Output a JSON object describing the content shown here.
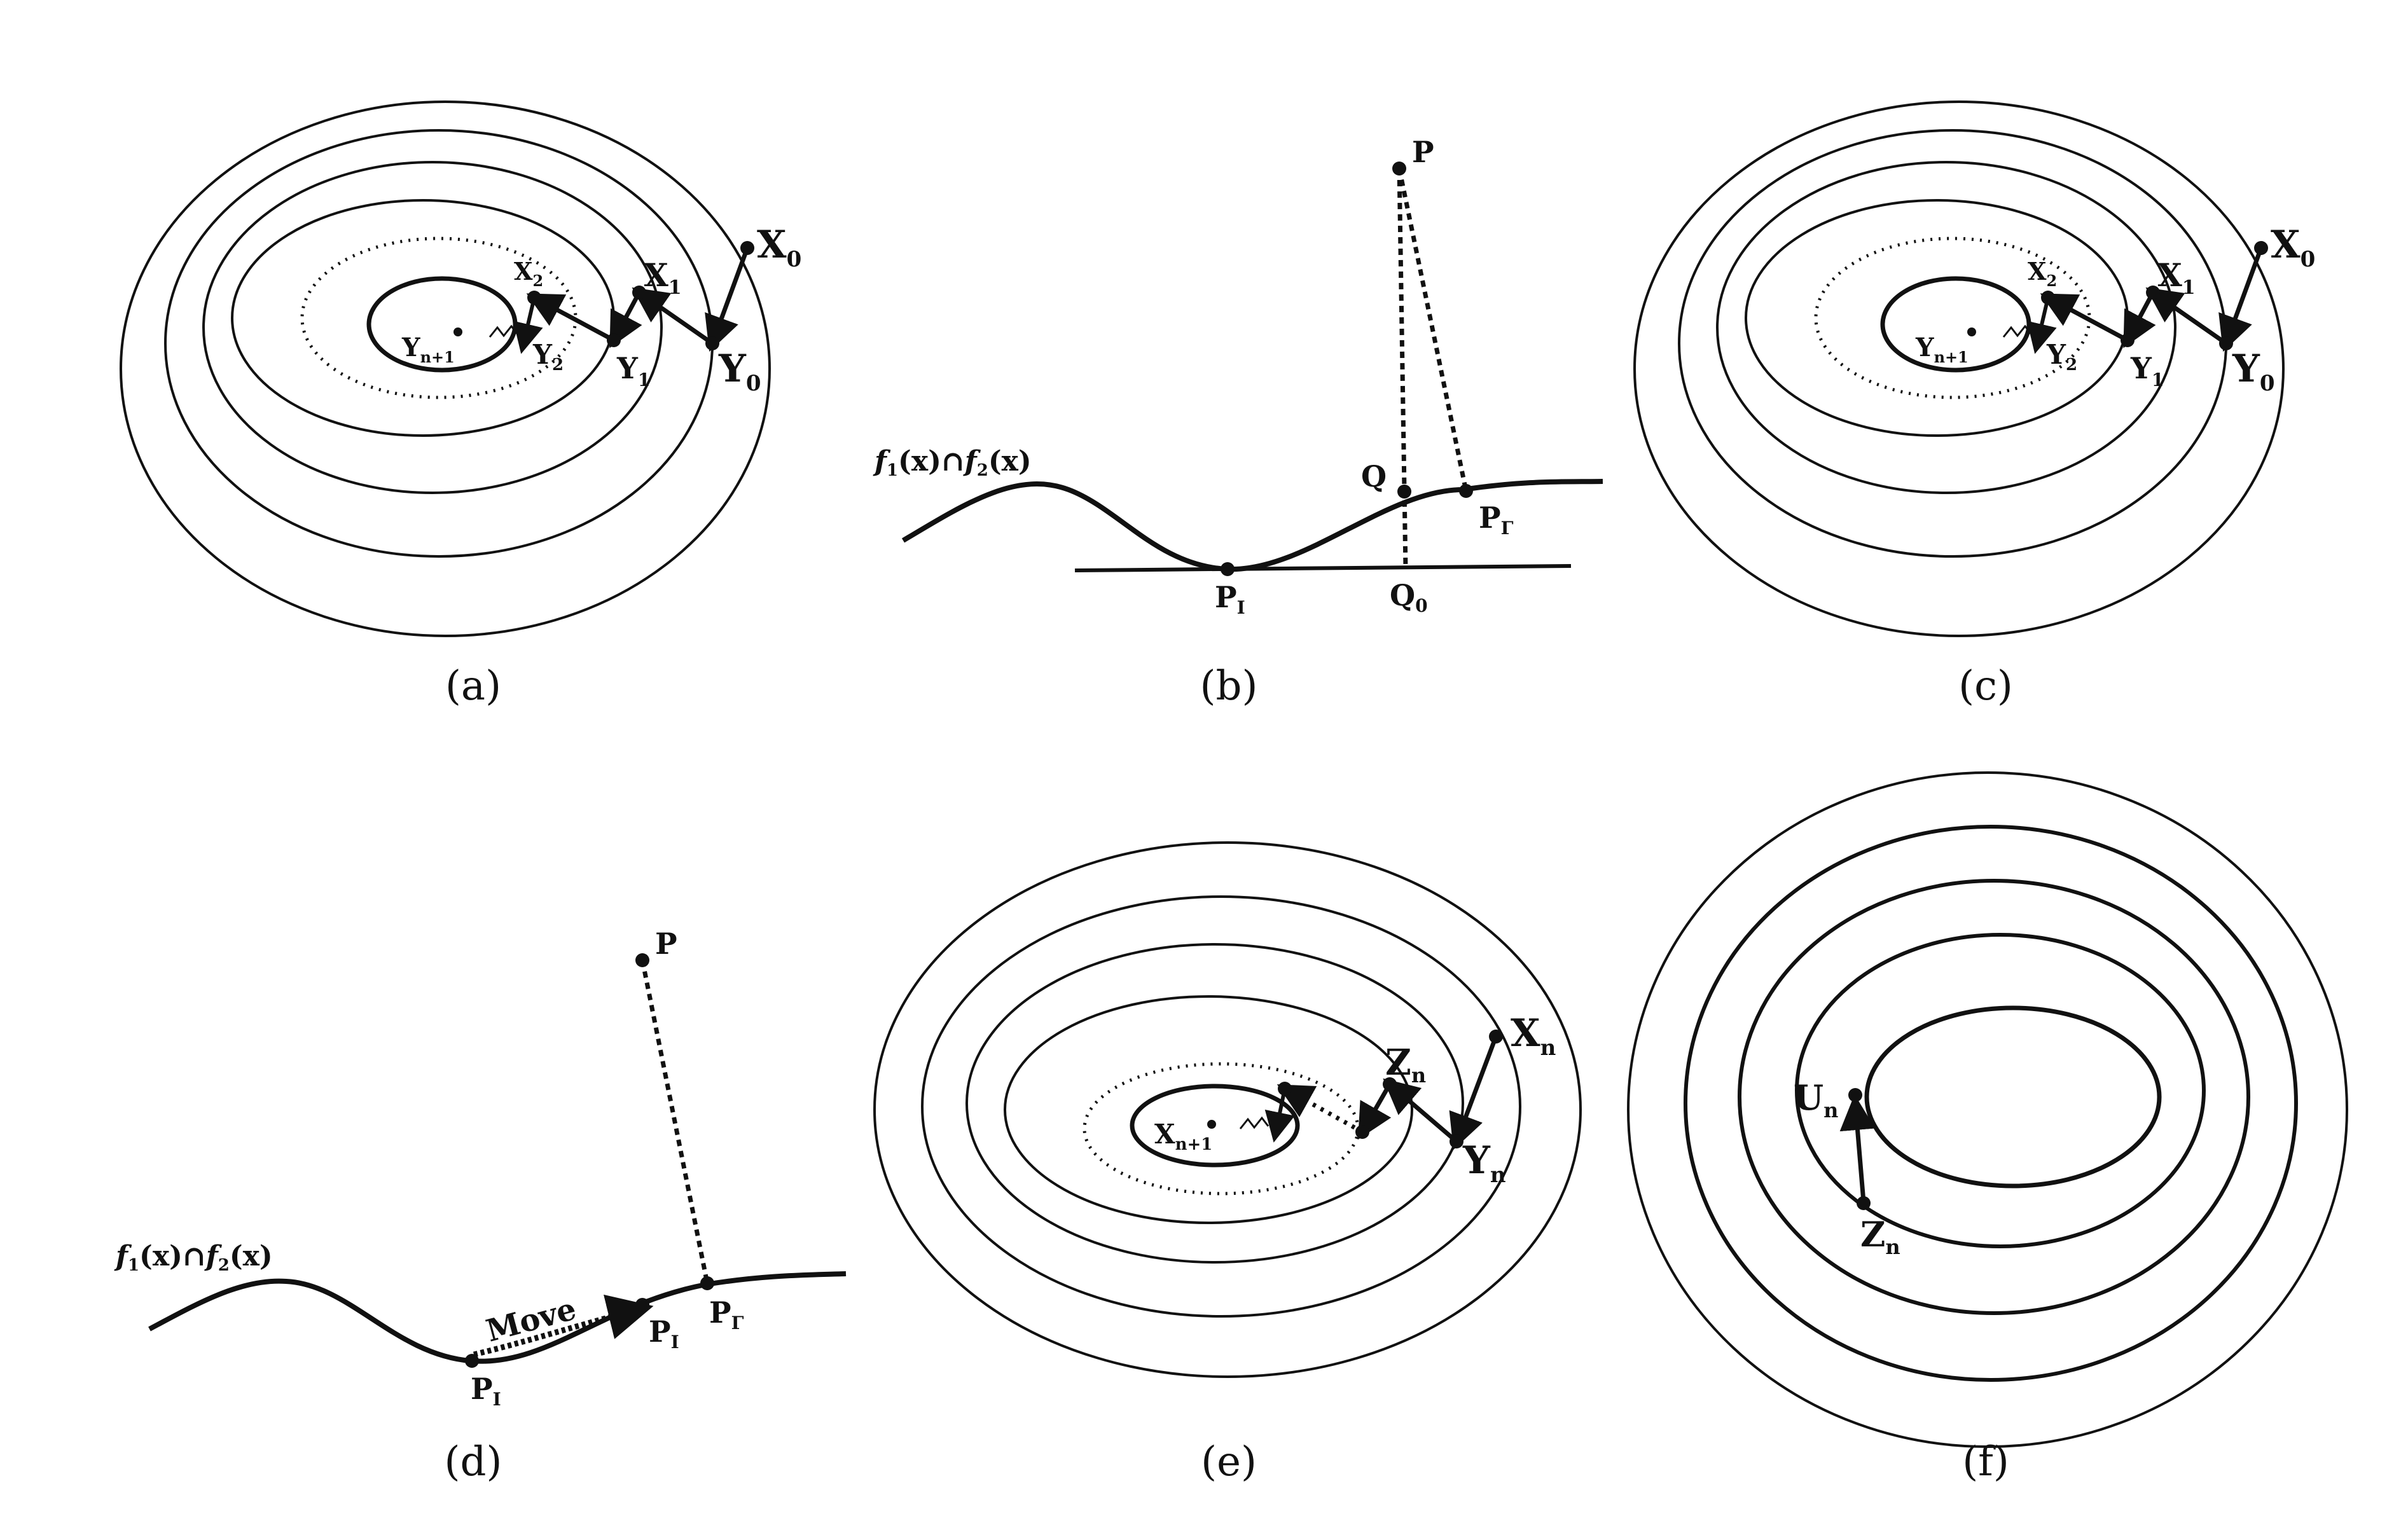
{
  "panels": [
    {
      "id": "a",
      "caption": "(a)"
    },
    {
      "id": "b",
      "caption": "(b)"
    },
    {
      "id": "c",
      "caption": "(c)"
    },
    {
      "id": "d",
      "caption": "(d)"
    },
    {
      "id": "e",
      "caption": "(e)"
    },
    {
      "id": "f",
      "caption": "(f)"
    }
  ],
  "labels": {
    "X": "X",
    "Y": "Y",
    "Z": "Z",
    "U": "U",
    "P": "P",
    "Q": "Q",
    "sub_0": "0",
    "sub_1": "1",
    "sub_2": "2",
    "sub_n": "n",
    "sub_n1": "n+1",
    "sub_I": "I",
    "sub_Gamma": "Γ",
    "f1": "f",
    "f2": "f",
    "x_paren": "(x)",
    "cap": "∩",
    "move": "Move"
  },
  "colors": {
    "ink": "#111111",
    "background": "#ffffff"
  }
}
